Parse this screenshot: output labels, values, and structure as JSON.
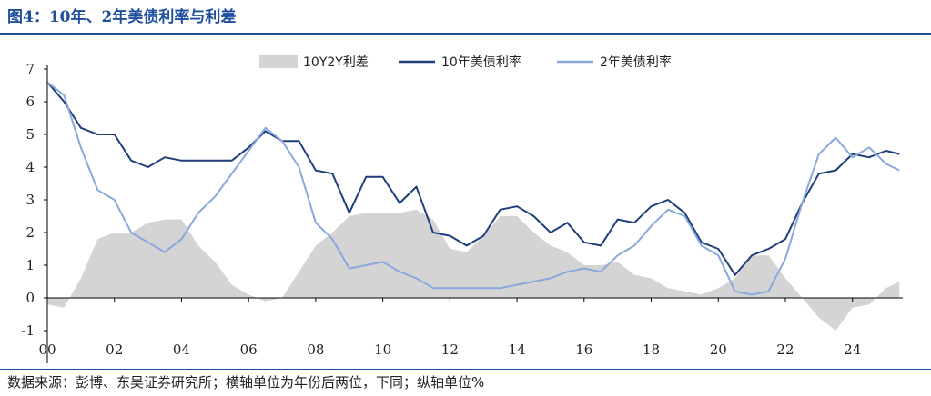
{
  "header": {
    "title": "图4：10年、2年美债利率与利差"
  },
  "footer": {
    "source": "数据来源：彭博、东吴证券研究所；横轴单位为年份后两位，下同；纵轴单位%"
  },
  "colors": {
    "spread": "#d4d4d4",
    "y10": "#1f3f7a",
    "y2": "#8aa8dc",
    "title": "#1f4e9c"
  },
  "chart_data": {
    "type": "line",
    "x_tick_labels": [
      "00",
      "02",
      "04",
      "06",
      "08",
      "10",
      "12",
      "14",
      "16",
      "18",
      "20",
      "22",
      "24"
    ],
    "y_tick_labels": [
      "-1",
      "0",
      "1",
      "2",
      "3",
      "4",
      "5",
      "6",
      "7"
    ],
    "ylim": [
      -1,
      7
    ],
    "xlim": [
      2000,
      2025.5
    ],
    "legend_position": "top-center",
    "series": [
      {
        "name": "10Y2Y利差",
        "type": "area",
        "color": "#d4d4d4",
        "x": [
          2000,
          2000.5,
          2001,
          2001.5,
          2002,
          2002.5,
          2003,
          2003.5,
          2004,
          2004.5,
          2005,
          2005.5,
          2006,
          2006.5,
          2007,
          2007.5,
          2008,
          2008.5,
          2009,
          2009.5,
          2010,
          2010.5,
          2011,
          2011.5,
          2012,
          2012.5,
          2013,
          2013.5,
          2014,
          2014.5,
          2015,
          2015.5,
          2016,
          2016.5,
          2017,
          2017.5,
          2018,
          2018.5,
          2019,
          2019.5,
          2020,
          2020.5,
          2021,
          2021.5,
          2022,
          2022.5,
          2023,
          2023.5,
          2024,
          2024.5,
          2025,
          2025.4
        ],
        "values": [
          -0.2,
          -0.3,
          0.6,
          1.8,
          2.0,
          2.0,
          2.3,
          2.4,
          2.4,
          1.6,
          1.1,
          0.4,
          0.1,
          -0.1,
          0.0,
          0.8,
          1.6,
          2.0,
          2.5,
          2.6,
          2.6,
          2.6,
          2.7,
          2.4,
          1.5,
          1.4,
          1.9,
          2.5,
          2.5,
          2.0,
          1.6,
          1.4,
          1.0,
          1.0,
          1.1,
          0.7,
          0.6,
          0.3,
          0.2,
          0.1,
          0.3,
          0.6,
          1.3,
          1.3,
          0.6,
          0.0,
          -0.6,
          -1.0,
          -0.3,
          -0.2,
          0.3,
          0.5
        ]
      },
      {
        "name": "10年美债利率",
        "type": "line",
        "color": "#1f3f7a",
        "x": [
          2000,
          2000.5,
          2001,
          2001.5,
          2002,
          2002.5,
          2003,
          2003.5,
          2004,
          2004.5,
          2005,
          2005.5,
          2006,
          2006.5,
          2007,
          2007.5,
          2008,
          2008.5,
          2009,
          2009.5,
          2010,
          2010.5,
          2011,
          2011.5,
          2012,
          2012.5,
          2013,
          2013.5,
          2014,
          2014.5,
          2015,
          2015.5,
          2016,
          2016.5,
          2017,
          2017.5,
          2018,
          2018.5,
          2019,
          2019.5,
          2020,
          2020.5,
          2021,
          2021.5,
          2022,
          2022.5,
          2023,
          2023.5,
          2024,
          2024.5,
          2025,
          2025.4
        ],
        "values": [
          6.6,
          6.0,
          5.2,
          5.0,
          5.0,
          4.2,
          4.0,
          4.3,
          4.2,
          4.2,
          4.2,
          4.2,
          4.6,
          5.1,
          4.8,
          4.8,
          3.9,
          3.8,
          2.6,
          3.7,
          3.7,
          2.9,
          3.4,
          2.0,
          1.9,
          1.6,
          1.9,
          2.7,
          2.8,
          2.5,
          2.0,
          2.3,
          1.7,
          1.6,
          2.4,
          2.3,
          2.8,
          3.0,
          2.6,
          1.7,
          1.5,
          0.7,
          1.3,
          1.5,
          1.8,
          2.9,
          3.8,
          3.9,
          4.4,
          4.3,
          4.5,
          4.4
        ]
      },
      {
        "name": "2年美债利率",
        "type": "line",
        "color": "#8aa8dc",
        "x": [
          2000,
          2000.5,
          2001,
          2001.5,
          2002,
          2002.5,
          2003,
          2003.5,
          2004,
          2004.5,
          2005,
          2005.5,
          2006,
          2006.5,
          2007,
          2007.5,
          2008,
          2008.5,
          2009,
          2009.5,
          2010,
          2010.5,
          2011,
          2011.5,
          2012,
          2012.5,
          2013,
          2013.5,
          2014,
          2014.5,
          2015,
          2015.5,
          2016,
          2016.5,
          2017,
          2017.5,
          2018,
          2018.5,
          2019,
          2019.5,
          2020,
          2020.5,
          2021,
          2021.5,
          2022,
          2022.5,
          2023,
          2023.5,
          2024,
          2024.5,
          2025,
          2025.4
        ],
        "values": [
          6.6,
          6.2,
          4.6,
          3.3,
          3.0,
          2.0,
          1.7,
          1.4,
          1.8,
          2.6,
          3.1,
          3.8,
          4.5,
          5.2,
          4.8,
          4.0,
          2.3,
          1.8,
          0.9,
          1.0,
          1.1,
          0.8,
          0.6,
          0.3,
          0.3,
          0.3,
          0.3,
          0.3,
          0.4,
          0.5,
          0.6,
          0.8,
          0.9,
          0.8,
          1.3,
          1.6,
          2.2,
          2.7,
          2.5,
          1.6,
          1.3,
          0.2,
          0.1,
          0.2,
          1.2,
          2.9,
          4.4,
          4.9,
          4.3,
          4.6,
          4.1,
          3.9
        ]
      }
    ]
  }
}
